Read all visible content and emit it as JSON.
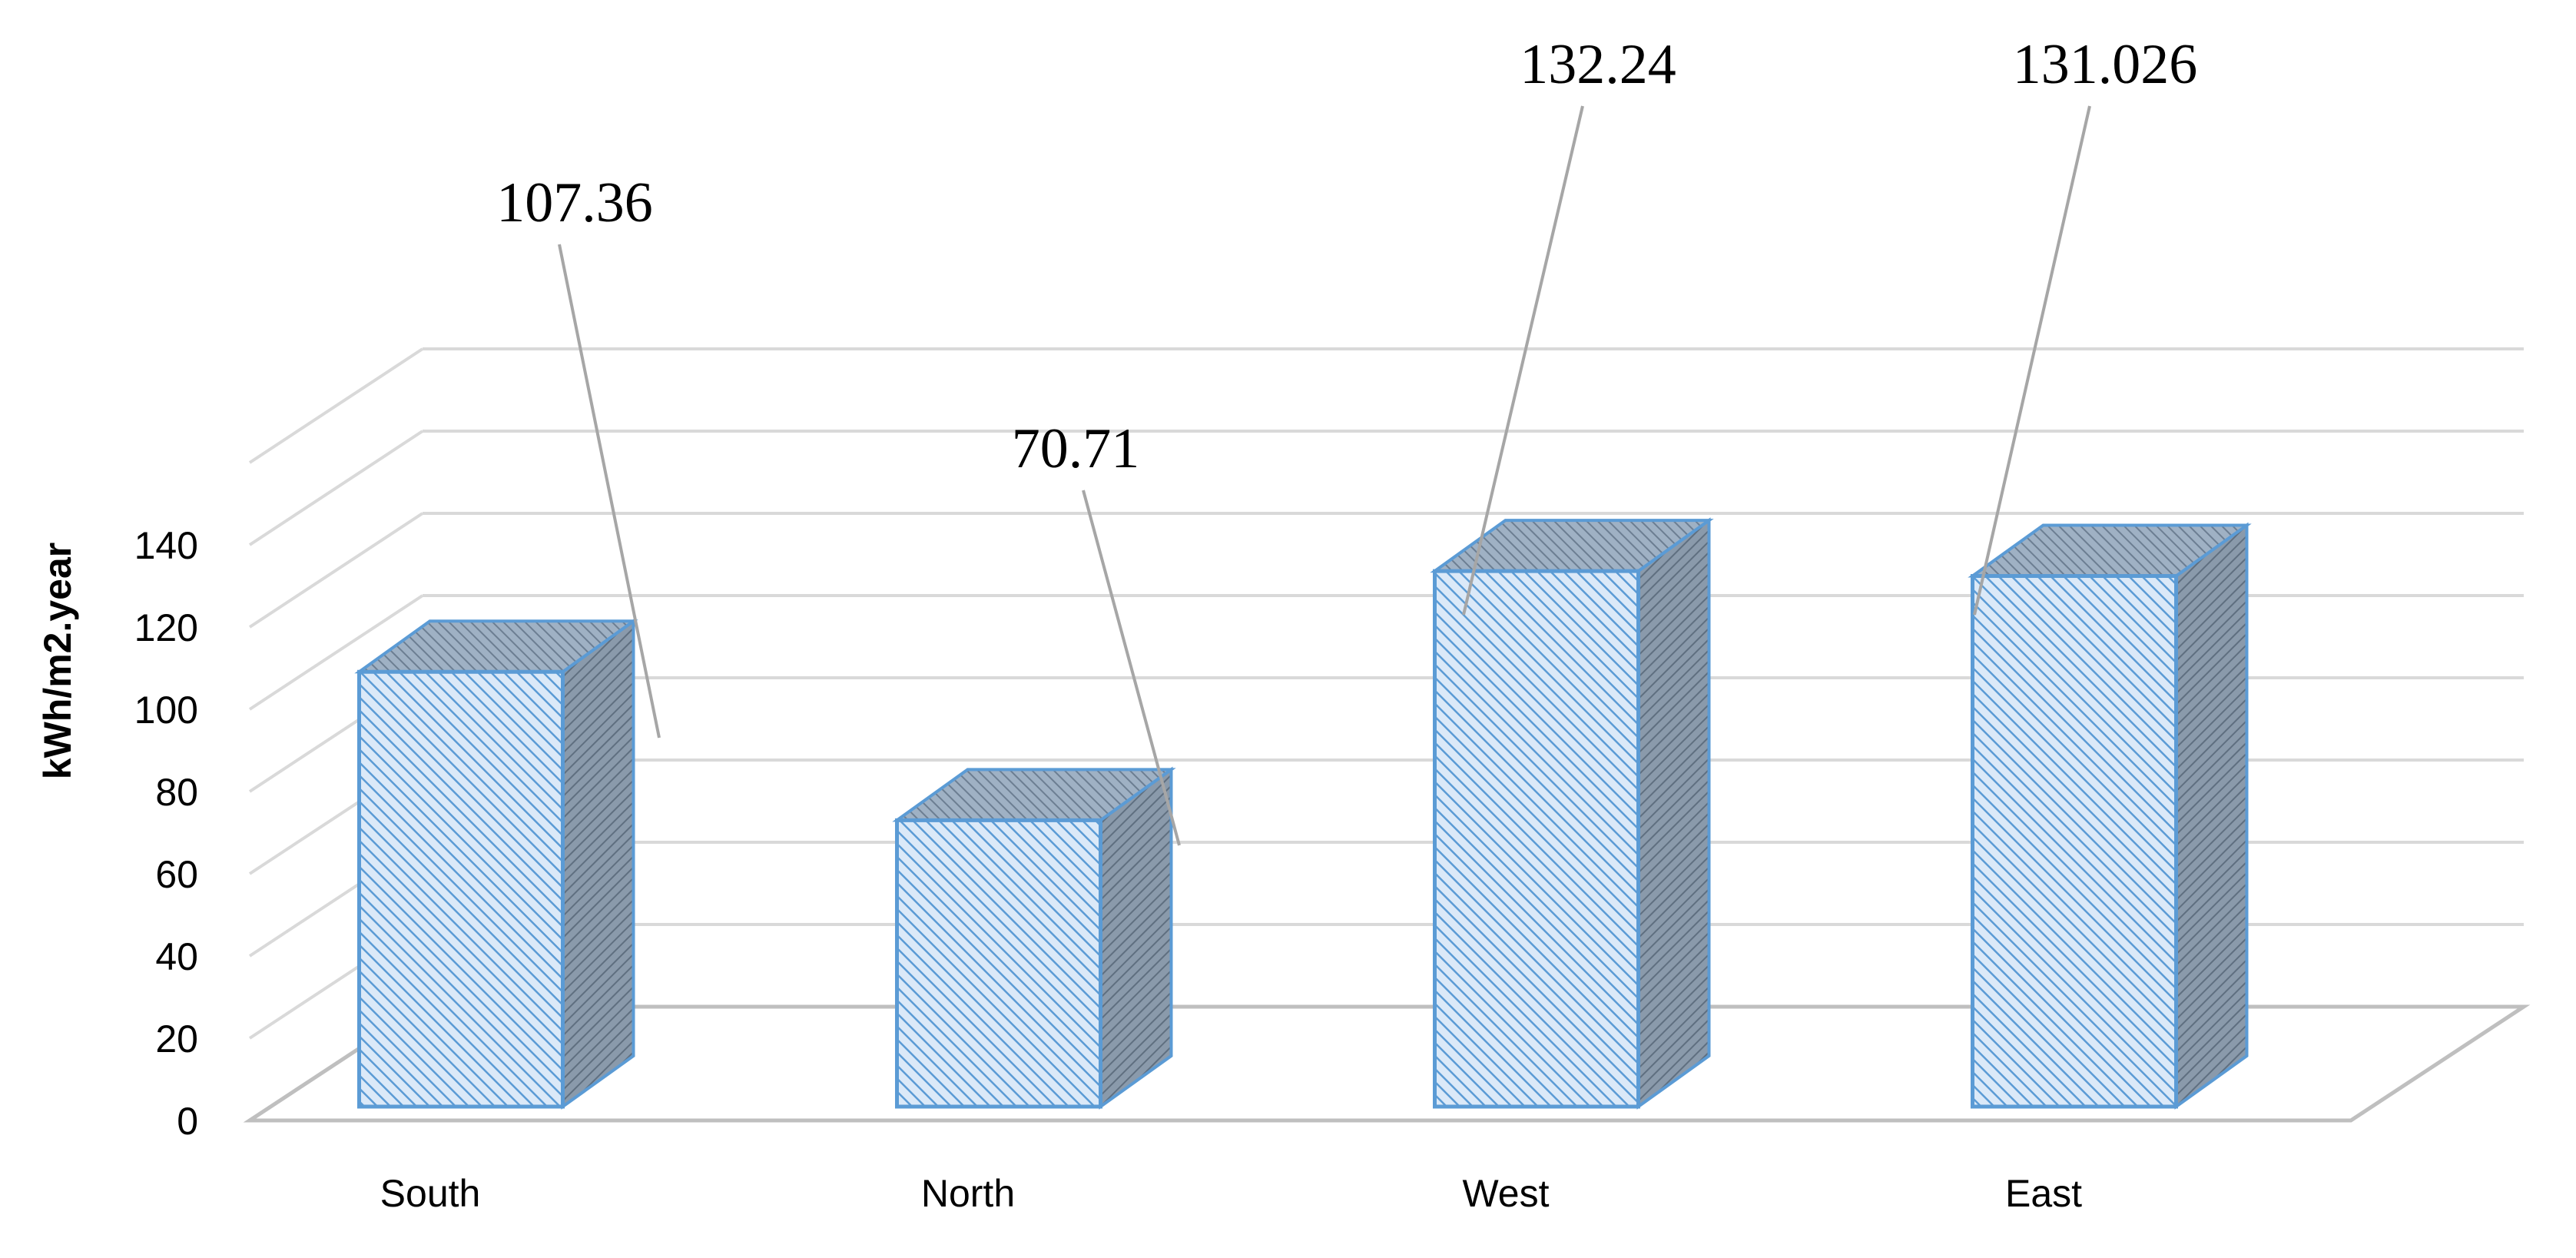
{
  "chart_data": {
    "type": "bar",
    "style": "3d-column",
    "categories": [
      "South",
      "North",
      "West",
      "East"
    ],
    "values": [
      107.36,
      70.71,
      132.24,
      131.026
    ],
    "data_labels": [
      "107.36",
      "70.71",
      "132.24",
      "131.026"
    ],
    "ylabel": "kWh/m2.year",
    "xlabel": "",
    "ylim": [
      0,
      140
    ],
    "yticks": [
      "0",
      "20",
      "40",
      "60",
      "80",
      "100",
      "120",
      "140"
    ],
    "grid": true,
    "legend": "none",
    "colors": {
      "bar_front": "#dbe9f8",
      "bar_hatch": "#5b9bd5",
      "bar_edge": "#5b9bd5",
      "bar_side": "#8a9aab",
      "gridline": "#d9d9d9",
      "leader_line": "#a6a6a6"
    }
  }
}
